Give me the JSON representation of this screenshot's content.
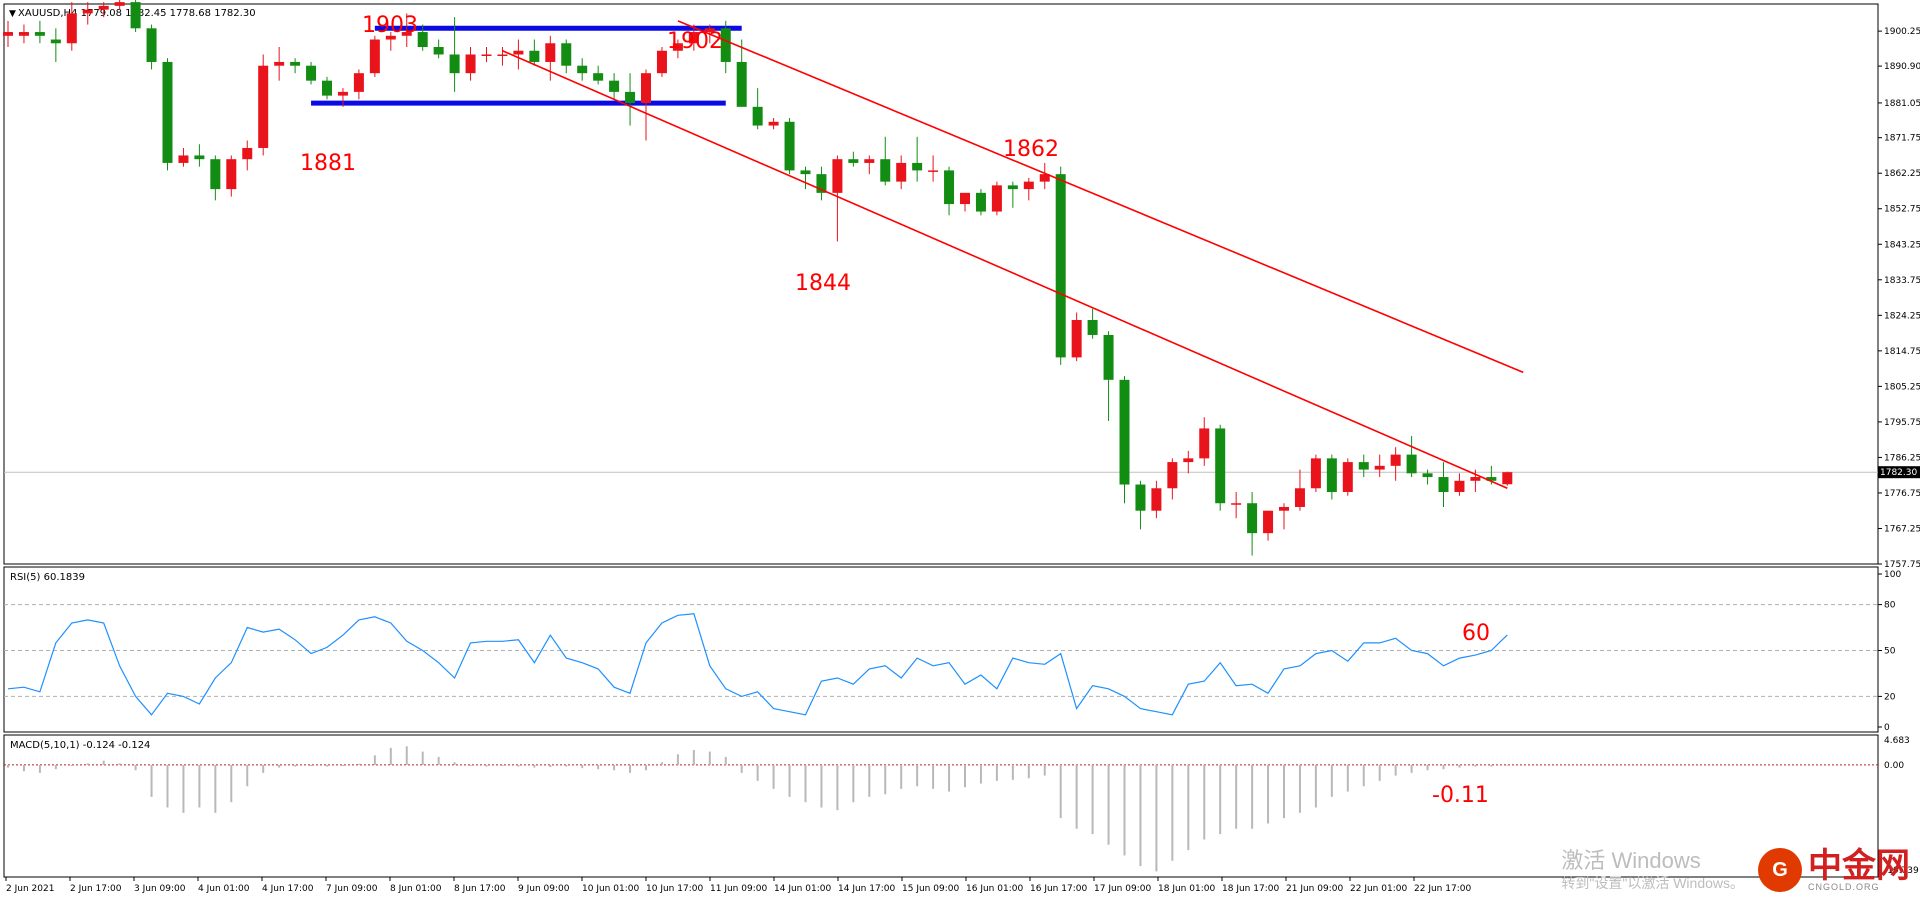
{
  "symbol_header": "XAUUSD,H4  1779.08 1782.45 1778.68 1782.30",
  "rsi_header": "RSI(5) 60.1839",
  "macd_header": "MACD(5,10,1) -0.124 -0.124",
  "current_price_label": "1782.30",
  "colors": {
    "bull": "#e8131b",
    "bear": "#138c13",
    "channel": "#ff0000",
    "range": "#0a0ae6",
    "rsi_line": "#1e90ff",
    "macd_bar": "#b8b8b8",
    "annotation": "#ff0000"
  },
  "annotations": {
    "a1903": "1903",
    "a1902": "1902",
    "a1881": "1881",
    "a1844": "1844",
    "a1862": "1862",
    "rsi_note": "60",
    "macd_note": "-0.11"
  },
  "watermark": {
    "windows_line1": "激活 Windows",
    "windows_line2": "转到\"设置\"以激活 Windows。",
    "logo_char": "中金网",
    "logo_sub": "CNGOLD.ORG"
  },
  "chart_data": [
    {
      "type": "candlestick",
      "title": "XAUUSD,H4",
      "ylim": [
        1757.75,
        1907.5
      ],
      "y_ticks": [
        "1900.25",
        "1890.90",
        "1881.05",
        "1871.75",
        "1862.25",
        "1852.75",
        "1843.25",
        "1833.75",
        "1824.25",
        "1814.75",
        "1805.25",
        "1795.75",
        "1786.25",
        "1776.75",
        "1767.25",
        "1757.75"
      ],
      "x_ticks": [
        "2 Jun 2021",
        "2 Jun 17:00",
        "3 Jun 09:00",
        "4 Jun 01:00",
        "4 Jun 17:00",
        "7 Jun 09:00",
        "8 Jun 01:00",
        "8 Jun 17:00",
        "9 Jun 09:00",
        "10 Jun 01:00",
        "10 Jun 17:00",
        "11 Jun 09:00",
        "14 Jun 01:00",
        "14 Jun 17:00",
        "15 Jun 09:00",
        "16 Jun 01:00",
        "16 Jun 17:00",
        "17 Jun 09:00",
        "18 Jun 01:00",
        "18 Jun 17:00",
        "21 Jun 09:00",
        "22 Jun 01:00",
        "22 Jun 17:00"
      ],
      "ohlc": [
        [
          1899,
          1903,
          1896,
          1900
        ],
        [
          1899,
          1902,
          1897,
          1900
        ],
        [
          1900,
          1903,
          1897,
          1899
        ],
        [
          1898,
          1901,
          1892,
          1897
        ],
        [
          1897,
          1908,
          1895,
          1905
        ],
        [
          1905,
          1908,
          1902,
          1906
        ],
        [
          1906,
          1908,
          1904,
          1907
        ],
        [
          1907,
          1909,
          1906,
          1908
        ],
        [
          1908,
          1909,
          1900,
          1901
        ],
        [
          1901,
          1902,
          1890,
          1892
        ],
        [
          1892,
          1893,
          1863,
          1865
        ],
        [
          1865,
          1869,
          1864,
          1867
        ],
        [
          1867,
          1870,
          1864,
          1866
        ],
        [
          1866,
          1867,
          1855,
          1858
        ],
        [
          1858,
          1867,
          1856,
          1866
        ],
        [
          1866,
          1871,
          1863,
          1869
        ],
        [
          1869,
          1894,
          1867,
          1891
        ],
        [
          1891,
          1896,
          1887,
          1892
        ],
        [
          1892,
          1893,
          1889,
          1891
        ],
        [
          1891,
          1892,
          1886,
          1887
        ],
        [
          1887,
          1888,
          1882,
          1883
        ],
        [
          1883,
          1885,
          1880,
          1884
        ],
        [
          1884,
          1890,
          1882,
          1889
        ],
        [
          1889,
          1899,
          1888,
          1898
        ],
        [
          1898,
          1900,
          1895,
          1899
        ],
        [
          1899,
          1905,
          1896,
          1900
        ],
        [
          1900,
          1902,
          1895,
          1896
        ],
        [
          1896,
          1898,
          1893,
          1894
        ],
        [
          1894,
          1904,
          1884,
          1889
        ],
        [
          1889,
          1896,
          1887,
          1894
        ],
        [
          1894,
          1896,
          1892,
          1894
        ],
        [
          1894,
          1896,
          1891,
          1894
        ],
        [
          1894,
          1898,
          1890,
          1895
        ],
        [
          1895,
          1898,
          1891,
          1892
        ],
        [
          1892,
          1899,
          1887,
          1897
        ],
        [
          1897,
          1898,
          1889,
          1891
        ],
        [
          1891,
          1893,
          1887,
          1889
        ],
        [
          1889,
          1891,
          1886,
          1887
        ],
        [
          1887,
          1889,
          1882,
          1884
        ],
        [
          1884,
          1889,
          1875,
          1881
        ],
        [
          1881,
          1890,
          1871,
          1889
        ],
        [
          1889,
          1896,
          1888,
          1895
        ],
        [
          1895,
          1898,
          1893,
          1897
        ],
        [
          1897,
          1902,
          1895,
          1900
        ],
        [
          1900,
          1902,
          1897,
          1901
        ],
        [
          1901,
          1903,
          1889,
          1892
        ],
        [
          1892,
          1898,
          1880,
          1880
        ],
        [
          1880,
          1885,
          1874,
          1875
        ],
        [
          1875,
          1877,
          1874,
          1876
        ],
        [
          1876,
          1877,
          1862,
          1863
        ],
        [
          1863,
          1864,
          1858,
          1862
        ],
        [
          1862,
          1864,
          1855,
          1857
        ],
        [
          1857,
          1867,
          1844,
          1866
        ],
        [
          1866,
          1868,
          1864,
          1865
        ],
        [
          1865,
          1867,
          1862,
          1866
        ],
        [
          1866,
          1872,
          1859,
          1860
        ],
        [
          1860,
          1867,
          1858,
          1865
        ],
        [
          1865,
          1872,
          1860,
          1863
        ],
        [
          1863,
          1867,
          1860,
          1863
        ],
        [
          1863,
          1864,
          1851,
          1854
        ],
        [
          1854,
          1857,
          1852,
          1857
        ],
        [
          1857,
          1858,
          1851,
          1852
        ],
        [
          1852,
          1860,
          1851,
          1859
        ],
        [
          1859,
          1860,
          1853,
          1858
        ],
        [
          1858,
          1861,
          1855,
          1860
        ],
        [
          1860,
          1865,
          1858,
          1862
        ],
        [
          1862,
          1864,
          1811,
          1813
        ],
        [
          1813,
          1825,
          1812,
          1823
        ],
        [
          1823,
          1826,
          1818,
          1819
        ],
        [
          1819,
          1820,
          1796,
          1807
        ],
        [
          1807,
          1808,
          1774,
          1779
        ],
        [
          1779,
          1780,
          1767,
          1772
        ],
        [
          1772,
          1780,
          1770,
          1778
        ],
        [
          1778,
          1786,
          1775,
          1785
        ],
        [
          1785,
          1788,
          1782,
          1786
        ],
        [
          1786,
          1797,
          1784,
          1794
        ],
        [
          1794,
          1795,
          1772,
          1774
        ],
        [
          1774,
          1777,
          1770,
          1774
        ],
        [
          1774,
          1777,
          1760,
          1766
        ],
        [
          1766,
          1772,
          1764,
          1772
        ],
        [
          1772,
          1774,
          1767,
          1773
        ],
        [
          1773,
          1783,
          1772,
          1778
        ],
        [
          1778,
          1787,
          1777,
          1786
        ],
        [
          1786,
          1787,
          1775,
          1777
        ],
        [
          1777,
          1786,
          1776,
          1785
        ],
        [
          1785,
          1787,
          1781,
          1783
        ],
        [
          1783,
          1787,
          1781,
          1784
        ],
        [
          1784,
          1789,
          1780,
          1787
        ],
        [
          1787,
          1792,
          1781,
          1782
        ],
        [
          1782,
          1783,
          1779,
          1781
        ],
        [
          1781,
          1785,
          1773,
          1777
        ],
        [
          1777,
          1782,
          1776,
          1780
        ],
        [
          1780,
          1783,
          1777,
          1781
        ],
        [
          1781,
          1784,
          1779,
          1780
        ],
        [
          1779.08,
          1782.45,
          1778.68,
          1782.3
        ]
      ],
      "current_price": 1782.3,
      "channel_lines": [
        {
          "from": [
            42,
            1903
          ],
          "to": [
            95,
            1809
          ]
        },
        {
          "from": [
            31,
            1895
          ],
          "to": [
            94,
            1778
          ]
        }
      ],
      "range_lines": [
        {
          "from": [
            23,
            1901
          ],
          "to": [
            46,
            1901
          ]
        },
        {
          "from": [
            19,
            1881
          ],
          "to": [
            45,
            1881
          ]
        }
      ]
    },
    {
      "type": "line",
      "title": "RSI(5) 60.1839",
      "ylim": [
        0,
        100
      ],
      "y_ticks": [
        "100",
        "80",
        "50",
        "20",
        "0"
      ],
      "values": [
        25,
        26,
        23,
        55,
        68,
        70,
        68,
        40,
        20,
        8,
        22,
        20,
        15,
        32,
        42,
        65,
        62,
        64,
        57,
        48,
        52,
        60,
        70,
        72,
        68,
        56,
        50,
        42,
        32,
        55,
        56,
        56,
        57,
        42,
        60,
        45,
        42,
        38,
        26,
        22,
        55,
        68,
        73,
        74,
        40,
        25,
        20,
        23,
        12,
        10,
        8,
        30,
        32,
        28,
        38,
        40,
        32,
        45,
        40,
        42,
        28,
        34,
        25,
        45,
        42,
        41,
        48,
        12,
        27,
        25,
        20,
        12,
        10,
        8,
        28,
        30,
        42,
        27,
        28,
        22,
        38,
        40,
        48,
        50,
        43,
        55,
        55,
        58,
        50,
        48,
        40,
        45,
        47,
        50,
        60.18
      ],
      "gridlines": [
        80,
        50,
        20
      ]
    },
    {
      "type": "bar",
      "title": "MACD(5,10,1) -0.124 -0.124",
      "ylim": [
        -19.739,
        4.683
      ],
      "y_ticks": [
        "4.683",
        "0.00",
        "-19.739"
      ],
      "values": [
        -0.5,
        -1.2,
        -1.5,
        -0.8,
        -0.2,
        0.3,
        0.8,
        0.3,
        -1,
        -6,
        -8,
        -9,
        -8,
        -9,
        -7,
        -4,
        -1.5,
        -0.5,
        -0.3,
        -0.2,
        -0.3,
        -0.2,
        0.2,
        1.8,
        3.2,
        3.5,
        2.5,
        1.5,
        0.5,
        -0.2,
        -0.3,
        -0.2,
        -0.3,
        -0.5,
        -0.4,
        -0.3,
        -0.6,
        -0.8,
        -1,
        -1.5,
        -1,
        0.5,
        2,
        2.8,
        2.5,
        1.5,
        -1.5,
        -3,
        -4.5,
        -6,
        -7,
        -8,
        -8.5,
        -7,
        -6,
        -5.5,
        -4.5,
        -4,
        -4.5,
        -5,
        -4.2,
        -3.5,
        -3,
        -2.8,
        -2.5,
        -2,
        -10,
        -12,
        -13,
        -15,
        -17,
        -19,
        -20,
        -18,
        -16,
        -14,
        -13,
        -12,
        -12,
        -11,
        -10,
        -9,
        -8,
        -6,
        -5,
        -4,
        -3,
        -2,
        -1.5,
        -1,
        -0.8,
        -0.5,
        -0.3,
        -0.3,
        -0.124
      ]
    }
  ]
}
